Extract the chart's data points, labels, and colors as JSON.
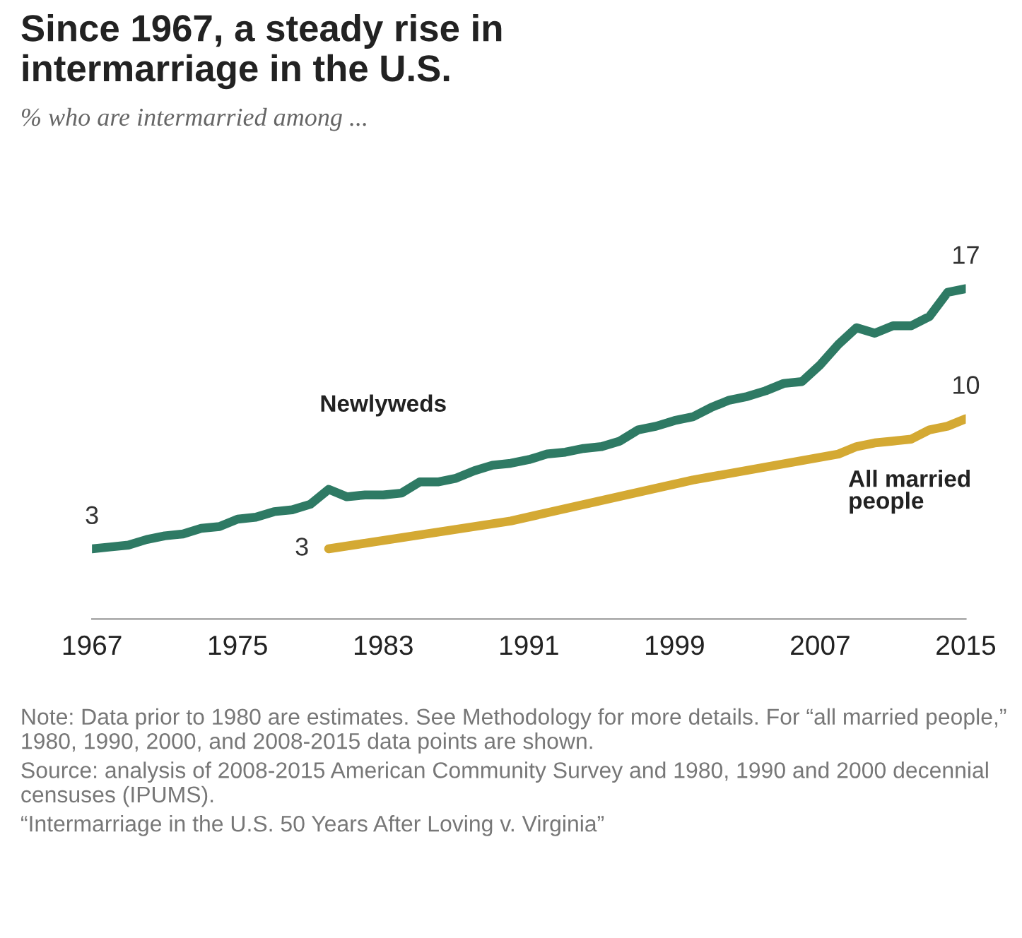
{
  "chart_data": {
    "type": "line",
    "title": "Since 1967, a steady rise in\nintermarriage in the U.S.",
    "subtitle": "% who are intermarried among ...",
    "xlim": [
      1967,
      2015
    ],
    "xticks": [
      1967,
      1975,
      1983,
      1991,
      1999,
      2007,
      2015
    ],
    "tick_labels": "x",
    "grid": false,
    "series": [
      {
        "name": "Newlyweds",
        "color": "#2e7a64",
        "x": [
          1967,
          1968,
          1969,
          1970,
          1971,
          1972,
          1973,
          1974,
          1975,
          1976,
          1977,
          1978,
          1979,
          1980,
          1981,
          1982,
          1983,
          1984,
          1985,
          1986,
          1987,
          1988,
          1989,
          1990,
          1991,
          1992,
          1993,
          1994,
          1995,
          1996,
          1997,
          1998,
          1999,
          2000,
          2001,
          2002,
          2003,
          2004,
          2005,
          2006,
          2007,
          2008,
          2009,
          2010,
          2011,
          2012,
          2013,
          2014,
          2015
        ],
        "values": [
          3,
          3.1,
          3.2,
          3.5,
          3.7,
          3.8,
          4.1,
          4.2,
          4.6,
          4.7,
          5.0,
          5.1,
          5.4,
          6.2,
          5.8,
          5.9,
          5.9,
          6.0,
          6.6,
          6.6,
          6.8,
          7.2,
          7.5,
          7.6,
          7.8,
          8.1,
          8.2,
          8.4,
          8.5,
          8.8,
          9.4,
          9.6,
          9.9,
          10.1,
          10.6,
          11.0,
          11.2,
          11.5,
          11.9,
          12.0,
          12.9,
          14.0,
          14.9,
          14.6,
          15.0,
          15.0,
          15.5,
          16.8,
          17
        ],
        "value_labels": [
          "3",
          null,
          null,
          null,
          null,
          null,
          null,
          null,
          null,
          null,
          null,
          null,
          null,
          null,
          null,
          null,
          null,
          null,
          null,
          null,
          null,
          null,
          null,
          null,
          null,
          null,
          null,
          null,
          null,
          null,
          null,
          null,
          null,
          null,
          null,
          null,
          null,
          null,
          null,
          null,
          null,
          null,
          null,
          null,
          null,
          null,
          null,
          null,
          "17"
        ]
      },
      {
        "name": "All married\npeople",
        "color": "#d4a933",
        "x": [
          1980,
          1990,
          2000,
          2008,
          2009,
          2010,
          2011,
          2012,
          2013,
          2014,
          2015
        ],
        "values": [
          3,
          4.5,
          6.7,
          8.1,
          8.5,
          8.7,
          8.8,
          8.9,
          9.4,
          9.6,
          10
        ],
        "value_labels": [
          "3",
          null,
          null,
          null,
          null,
          null,
          null,
          null,
          null,
          null,
          "10"
        ]
      }
    ],
    "annotations": [
      "Note: Data prior to 1980 are estimates. See Methodology for more details. For “all married people,” 1980, 1990, 2000, and 2008-2015 data points are shown.",
      "Source: analysis of 2008-2015 American Community Survey and 1980, 1990 and 2000 decennial censuses (IPUMS).",
      "“Intermarriage in the U.S. 50 Years After Loving v. Virginia”"
    ]
  }
}
